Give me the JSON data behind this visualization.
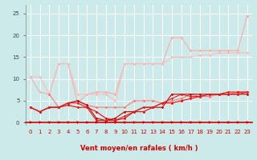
{
  "xlabel": "Vent moyen/en rafales ( km/h )",
  "background_color": "#cceaea",
  "grid_color": "#ffffff",
  "xlim": [
    -0.5,
    23.5
  ],
  "ylim": [
    -0.5,
    27
  ],
  "yticks": [
    0,
    5,
    10,
    15,
    20,
    25
  ],
  "xticks": [
    0,
    1,
    2,
    3,
    4,
    5,
    6,
    7,
    8,
    9,
    10,
    11,
    12,
    13,
    14,
    15,
    16,
    17,
    18,
    19,
    20,
    21,
    22,
    23
  ],
  "lines": [
    {
      "x": [
        0,
        1,
        2,
        3,
        4,
        5,
        6,
        7,
        8,
        9,
        10,
        11,
        12,
        13,
        14,
        15,
        16,
        17,
        18,
        19,
        20,
        21,
        22,
        23
      ],
      "y": [
        10.5,
        7,
        6.5,
        13.5,
        13.5,
        4.5,
        6.5,
        7,
        7,
        6.5,
        13.5,
        13.5,
        13.5,
        13.5,
        13.5,
        19.5,
        19.5,
        16.5,
        16.5,
        16.5,
        16.5,
        16.5,
        16.5,
        24.5
      ],
      "color": "#ffaaaa",
      "lw": 0.8,
      "marker": "D",
      "ms": 1.8,
      "zorder": 2
    },
    {
      "x": [
        0,
        1,
        2,
        3,
        4,
        5,
        6,
        7,
        8,
        9,
        10,
        11,
        12,
        13,
        14,
        15,
        16,
        17,
        18,
        19,
        20,
        21,
        22,
        23
      ],
      "y": [
        10.5,
        10.5,
        6.5,
        13.5,
        13.5,
        6.5,
        6.5,
        6.5,
        6.5,
        5,
        13.5,
        13.5,
        13.5,
        13.5,
        13.5,
        15,
        15,
        15,
        15.5,
        15.5,
        16,
        16,
        16,
        16
      ],
      "color": "#ffbbbb",
      "lw": 0.8,
      "marker": "D",
      "ms": 1.8,
      "zorder": 2
    },
    {
      "x": [
        2,
        3,
        4,
        5,
        6,
        7,
        8,
        9,
        10,
        11,
        12,
        13,
        14,
        15,
        16,
        17,
        18,
        19,
        20,
        21,
        22,
        23
      ],
      "y": [
        6.5,
        3.5,
        4.5,
        5,
        4,
        3.5,
        3.5,
        3.5,
        3.5,
        5,
        5,
        5,
        4.5,
        5,
        5.5,
        6.5,
        6,
        6,
        6.5,
        6.5,
        7,
        7
      ],
      "color": "#ff7777",
      "lw": 0.8,
      "marker": "D",
      "ms": 1.8,
      "zorder": 3
    },
    {
      "x": [
        0,
        1,
        2,
        3,
        4,
        5,
        6,
        7,
        8,
        9,
        10,
        11,
        12,
        13,
        14,
        15,
        16,
        17,
        18,
        19,
        20,
        21,
        22,
        23
      ],
      "y": [
        3.5,
        2.5,
        3.5,
        3.5,
        4,
        3.5,
        3.5,
        2.5,
        1,
        0.5,
        1,
        2.5,
        2.5,
        3.5,
        4.5,
        4.5,
        5,
        5.5,
        6,
        6.5,
        6.5,
        7,
        7,
        7
      ],
      "color": "#ff0000",
      "lw": 0.8,
      "marker": "D",
      "ms": 1.8,
      "zorder": 4
    },
    {
      "x": [
        0,
        1,
        2,
        3,
        4,
        5,
        6,
        7,
        8,
        9,
        10,
        11,
        12,
        13,
        14,
        15,
        16,
        17,
        18,
        19,
        20,
        21,
        22,
        23
      ],
      "y": [
        3.5,
        2.5,
        3.5,
        3.5,
        4.5,
        5,
        4,
        1,
        0.5,
        1,
        2.5,
        2.5,
        3.5,
        3.5,
        3.5,
        6.5,
        6.5,
        6.5,
        6.5,
        6.5,
        6.5,
        6.5,
        6.5,
        6.5
      ],
      "color": "#cc0000",
      "lw": 0.8,
      "marker": "D",
      "ms": 1.8,
      "zorder": 4
    },
    {
      "x": [
        0,
        1,
        2,
        3,
        4,
        5,
        6,
        7,
        8,
        9,
        10,
        11,
        12,
        13,
        14,
        15,
        16,
        17,
        18,
        19,
        20,
        21,
        22,
        23
      ],
      "y": [
        3.5,
        2.5,
        3.5,
        3.5,
        4.5,
        4.5,
        3.5,
        0.5,
        0.5,
        0.5,
        1.5,
        2.5,
        3.5,
        3.5,
        4.5,
        5.5,
        6.5,
        6,
        6,
        6.5,
        6.5,
        6.5,
        6.5,
        7
      ],
      "color": "#dd2222",
      "lw": 0.8,
      "marker": "D",
      "ms": 1.6,
      "zorder": 4
    }
  ],
  "arrow_color": "#cc0000",
  "label_fontsize": 5.5,
  "tick_fontsize": 5.0,
  "xlabel_fontsize": 6.0
}
